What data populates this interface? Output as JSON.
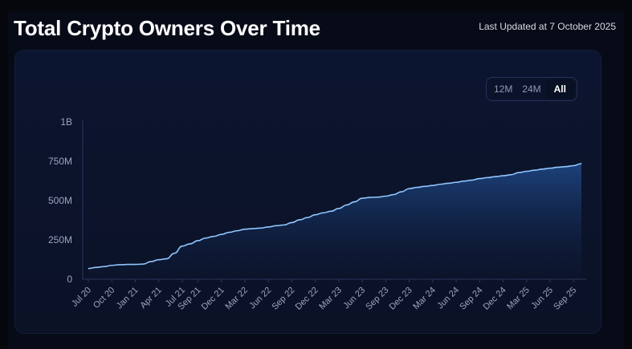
{
  "header": {
    "title": "Total Crypto Owners Over Time",
    "last_updated": "Last Updated at 7 October 2025"
  },
  "range_selector": {
    "options": [
      "12M",
      "24M",
      "All"
    ],
    "selected": "All"
  },
  "colors": {
    "line": "#8fc6ff",
    "area_top": "#1f4a8a",
    "area_bottom": "#0d1833",
    "active_pill": "#081024"
  },
  "chart_data": {
    "type": "area",
    "title": "Total Crypto Owners Over Time",
    "xlabel": "",
    "ylabel": "",
    "y_ticks": [
      "0",
      "250M",
      "500M",
      "750M",
      "1B"
    ],
    "ylim": [
      0,
      1000
    ],
    "y_unit": "millions",
    "x_ticks": [
      "Jul 20",
      "Oct 20",
      "Jan 21",
      "Apr 21",
      "Jul 21",
      "Sep 21",
      "Dec 21",
      "Mar 22",
      "Jun 22",
      "Sep 22",
      "Dec 22",
      "Mar 23",
      "Jun 23",
      "Sep 23",
      "Dec 23",
      "Mar 24",
      "Jun 24",
      "Sep 24",
      "Dec 24",
      "Mar 25",
      "Jun 25",
      "Sep 25"
    ],
    "grid": false,
    "legend": "none",
    "x": [
      "Jul 20",
      "Aug 20",
      "Sep 20",
      "Oct 20",
      "Nov 20",
      "Dec 20",
      "Jan 21",
      "Feb 21",
      "Mar 21",
      "Apr 21",
      "May 21",
      "Jun 21",
      "Jul 21",
      "Aug 21",
      "Sep 21",
      "Oct 21",
      "Nov 21",
      "Dec 21",
      "Jan 22",
      "Feb 22",
      "Mar 22",
      "Apr 22",
      "May 22",
      "Jun 22",
      "Jul 22",
      "Aug 22",
      "Sep 22",
      "Oct 22",
      "Nov 22",
      "Dec 22",
      "Jan 23",
      "Feb 23",
      "Mar 23",
      "Apr 23",
      "May 23",
      "Jun 23",
      "Jul 23",
      "Aug 23",
      "Sep 23",
      "Oct 23",
      "Nov 23",
      "Dec 23",
      "Jan 24",
      "Feb 24",
      "Mar 24",
      "Apr 24",
      "May 24",
      "Jun 24",
      "Jul 24",
      "Aug 24",
      "Sep 24",
      "Oct 24",
      "Nov 24",
      "Dec 24",
      "Jan 25",
      "Feb 25",
      "Mar 25",
      "Apr 25",
      "May 25",
      "Jun 25",
      "Jul 25",
      "Aug 25",
      "Sep 25",
      "Oct 25"
    ],
    "values": [
      68,
      75,
      80,
      88,
      92,
      94,
      94,
      96,
      112,
      124,
      130,
      165,
      210,
      225,
      245,
      262,
      272,
      285,
      298,
      308,
      318,
      322,
      325,
      332,
      340,
      345,
      360,
      378,
      392,
      410,
      422,
      432,
      450,
      472,
      492,
      515,
      520,
      522,
      528,
      538,
      556,
      576,
      584,
      590,
      596,
      604,
      610,
      616,
      624,
      630,
      640,
      646,
      652,
      658,
      664,
      678,
      686,
      693,
      700,
      706,
      712,
      716,
      722,
      735
    ]
  }
}
